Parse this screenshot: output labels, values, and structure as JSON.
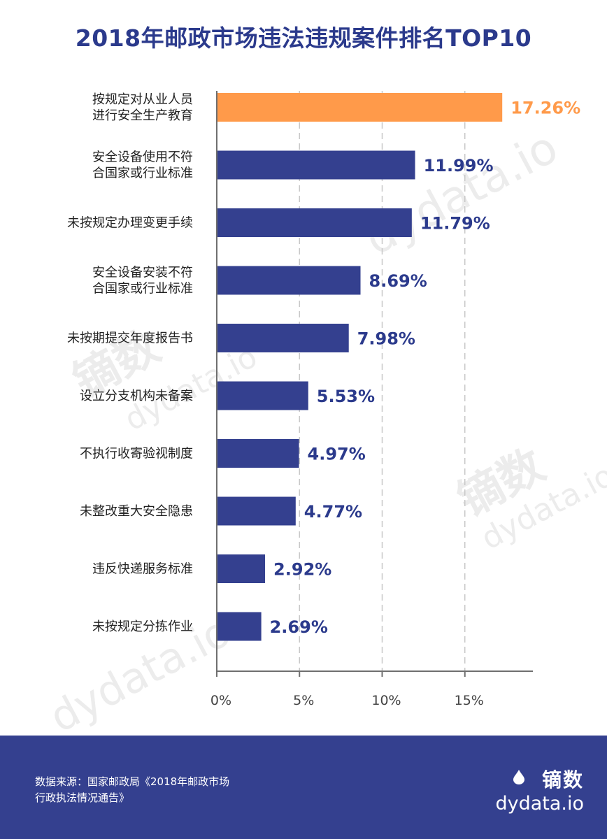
{
  "title": "2018年邮政市场违法违规案件排名TOP10",
  "colors": {
    "bar": "#34408f",
    "highlight": "#ff9a4a",
    "label": "#2b3a8c",
    "axis": "#6f6f6f",
    "grid": "#c8c8c8"
  },
  "chart_data": {
    "type": "bar",
    "orientation": "horizontal",
    "categories": [
      "按规定对从业人员\n进行安全生产教育",
      "安全设备使用不符\n合国家或行业标准",
      "未按规定办理变更手续",
      "安全设备安装不符\n合国家或行业标准",
      "未按期提交年度报告书",
      "设立分支机构未备案",
      "不执行收寄验视制度",
      "未整改重大安全隐患",
      "违反快递服务标准",
      "未按规定分拣作业"
    ],
    "values": [
      17.26,
      11.99,
      11.79,
      8.69,
      7.98,
      5.53,
      4.97,
      4.77,
      2.92,
      2.69
    ],
    "value_labels": [
      "17.26%",
      "11.99%",
      "11.79%",
      "8.69%",
      "7.98%",
      "5.53%",
      "4.97%",
      "4.77%",
      "2.92%",
      "2.69%"
    ],
    "highlight_index": 0,
    "xlim": [
      0,
      19
    ],
    "xticks": [
      0,
      5,
      10,
      15
    ],
    "xtick_labels": [
      "0%",
      "5%",
      "10%",
      "15%"
    ],
    "grid": "vertical dashed"
  },
  "footer": {
    "source": "数据来源：国家邮政局《2018年邮政市场行政执法情况通告》",
    "brand_cn": "镝数",
    "brand_en": "dydata.io"
  },
  "watermarks": [
    "镝数",
    "dydata.io",
    "镝数",
    "dydata.io",
    "dydata.io",
    "dydata.io"
  ]
}
